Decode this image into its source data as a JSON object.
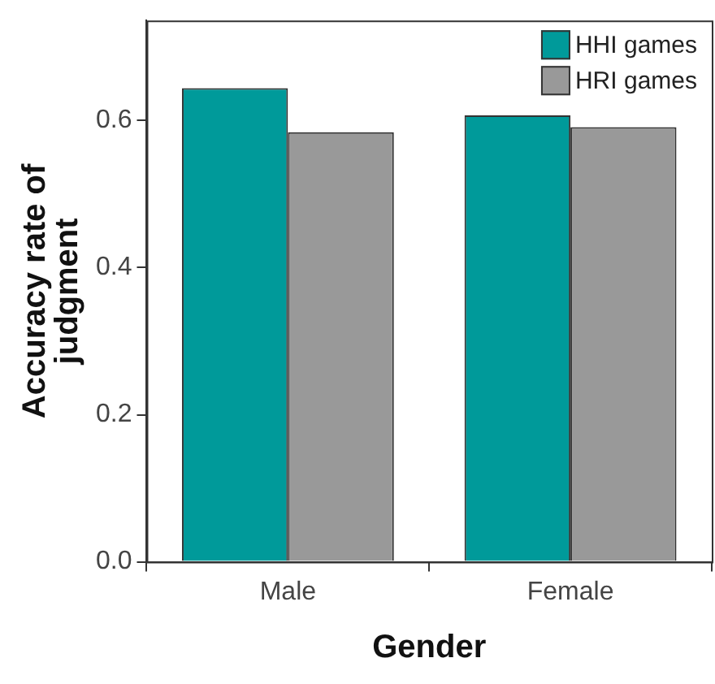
{
  "chart_data": {
    "type": "bar",
    "xlabel": "Gender",
    "ylabel": "Accuracy rate of judgment",
    "categories": [
      "Male",
      "Female"
    ],
    "series": [
      {
        "name": "HHI games",
        "color": "#009a9a",
        "values": [
          0.644,
          0.607
        ]
      },
      {
        "name": "HRI games",
        "color": "#999999",
        "values": [
          0.584,
          0.591
        ]
      }
    ],
    "ylim": [
      0,
      0.736
    ],
    "yticks": [
      {
        "value": 0,
        "label": "0.0"
      },
      {
        "value": 0.2,
        "label": "0.2"
      },
      {
        "value": 0.4,
        "label": "0.4"
      },
      {
        "value": 0.6,
        "label": "0.6"
      }
    ],
    "grid": false,
    "legend": "top right"
  }
}
